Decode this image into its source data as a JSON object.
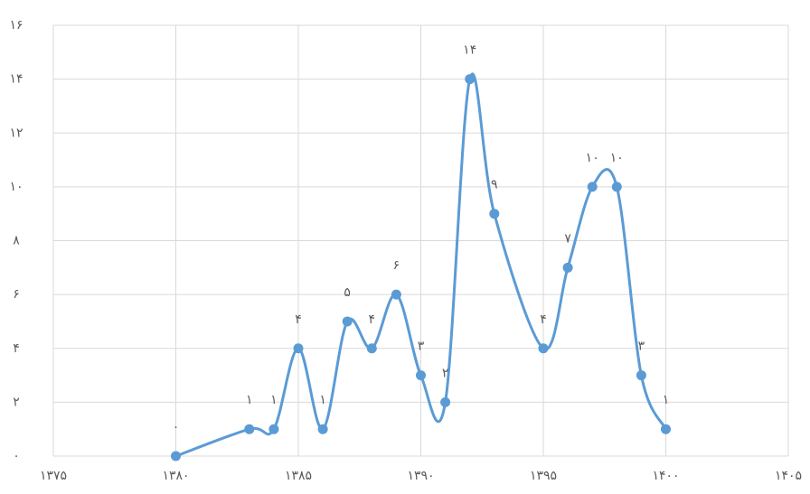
{
  "chart_data": {
    "type": "line",
    "smooth": true,
    "grid": true,
    "color": "#5b9bd5",
    "x": [
      1380,
      1383,
      1384,
      1385,
      1386,
      1387,
      1388,
      1389,
      1390,
      1391,
      1392,
      1393,
      1395,
      1396,
      1397,
      1398,
      1399,
      1400
    ],
    "values": [
      0,
      1,
      1,
      4,
      1,
      5,
      4,
      6,
      3,
      2,
      14,
      9,
      4,
      7,
      10,
      10,
      3,
      1
    ],
    "value_labels": [
      "۰",
      "۱",
      "۱",
      "۴",
      "۱",
      "۵",
      "۴",
      "۶",
      "۳",
      "۲",
      "۱۴",
      "۹",
      "۴",
      "۷",
      "۱۰",
      "۱۰",
      "۳",
      "۱"
    ],
    "xlim": [
      1375,
      1405
    ],
    "xticks": [
      {
        "value": 1375,
        "label": "۱۳۷۵"
      },
      {
        "value": 1380,
        "label": "۱۳۸۰"
      },
      {
        "value": 1385,
        "label": "۱۳۸۵"
      },
      {
        "value": 1390,
        "label": "۱۳۹۰"
      },
      {
        "value": 1395,
        "label": "۱۳۹۵"
      },
      {
        "value": 1400,
        "label": "۱۴۰۰"
      },
      {
        "value": 1405,
        "label": "۱۴۰۵"
      }
    ],
    "ylim": [
      0,
      16
    ],
    "yticks": [
      {
        "value": 0,
        "label": "۰"
      },
      {
        "value": 2,
        "label": "۲"
      },
      {
        "value": 4,
        "label": "۴"
      },
      {
        "value": 6,
        "label": "۶"
      },
      {
        "value": 8,
        "label": "۸"
      },
      {
        "value": 10,
        "label": "۱۰"
      },
      {
        "value": 12,
        "label": "۱۲"
      },
      {
        "value": 14,
        "label": "۱۴"
      },
      {
        "value": 16,
        "label": "۱۶"
      }
    ]
  }
}
